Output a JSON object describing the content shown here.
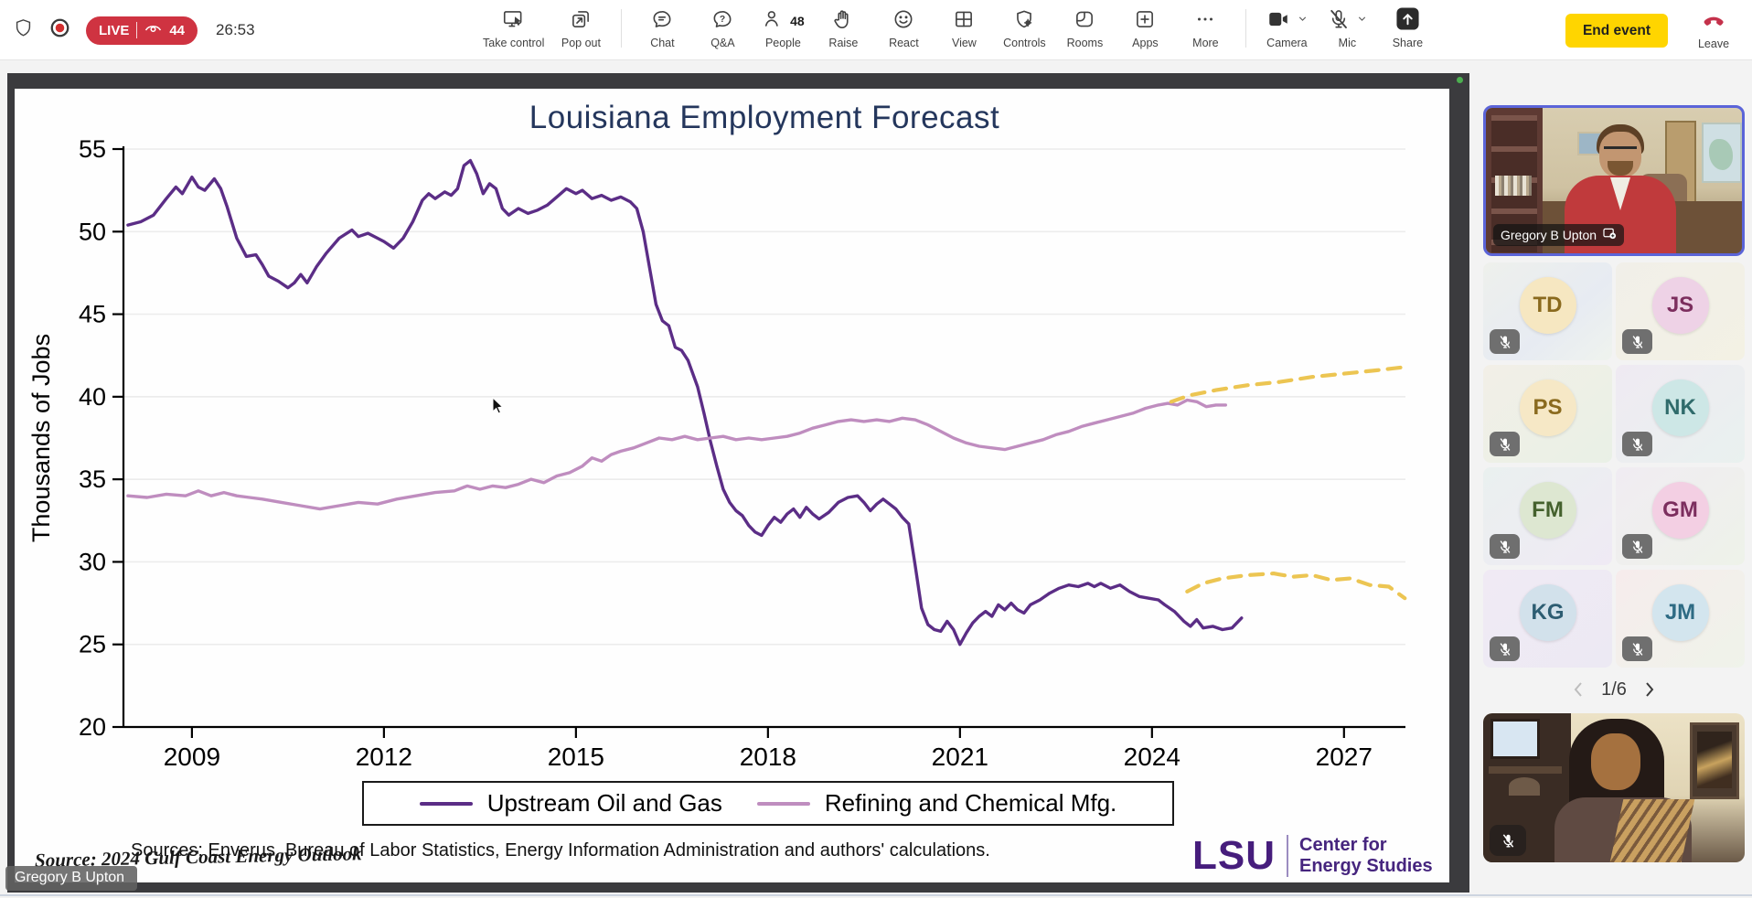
{
  "meeting": {
    "live_label": "LIVE",
    "viewer_count": "44",
    "timer": "26:53",
    "toolbar": [
      {
        "icon": "take-control",
        "label": "Take control"
      },
      {
        "icon": "pop-out",
        "label": "Pop out"
      },
      {
        "divider": true
      },
      {
        "icon": "chat",
        "label": "Chat"
      },
      {
        "icon": "qa",
        "label": "Q&A"
      },
      {
        "icon": "people",
        "label": "People",
        "badge": "48"
      },
      {
        "icon": "raise",
        "label": "Raise"
      },
      {
        "icon": "react",
        "label": "React"
      },
      {
        "icon": "view",
        "label": "View"
      },
      {
        "icon": "controls",
        "label": "Controls"
      },
      {
        "icon": "rooms",
        "label": "Rooms"
      },
      {
        "icon": "apps",
        "label": "Apps"
      },
      {
        "icon": "more",
        "label": "More"
      },
      {
        "divider": true
      },
      {
        "icon": "camera",
        "label": "Camera",
        "chevron": true
      },
      {
        "icon": "mic-off",
        "label": "Mic",
        "chevron": true
      },
      {
        "icon": "share",
        "label": "Share"
      }
    ],
    "end_event_label": "End event",
    "leave_label": "Leave"
  },
  "slide": {
    "title": "Louisiana Employment Forecast",
    "sources_note": "Sources: Enverus, Bureau of Labor Statistics, Energy Information Administration and authors' calculations.",
    "overlay_source": "Source: 2024 Gulf Coast Energy Outlook",
    "logo": {
      "lsu": "LSU",
      "unit_line1": "Center for",
      "unit_line2": "Energy Studies"
    },
    "presenter_caption": "Gregory B Upton"
  },
  "chart_data": {
    "type": "line",
    "title": "Louisiana Employment Forecast",
    "xlabel": "",
    "ylabel": "Thousands of Jobs",
    "ylim": [
      20,
      55
    ],
    "yticks": [
      20,
      25,
      30,
      35,
      40,
      45,
      50,
      55
    ],
    "xticks": [
      2009,
      2012,
      2015,
      2018,
      2021,
      2024,
      2027
    ],
    "xlim": [
      2007.93,
      2027.96
    ],
    "grid": true,
    "legend_position": "bottom",
    "colors": {
      "upstream": "#5b2d86",
      "refining": "#bf8dbf",
      "forecast": "#ecc552"
    },
    "legend": [
      {
        "label": "Upstream Oil and Gas",
        "color": "#5b2d86"
      },
      {
        "label": "Refining and Chemical Mfg.",
        "color": "#bf8dbf"
      }
    ],
    "series": [
      {
        "name": "Upstream Oil and Gas",
        "color": "#5b2d86",
        "style": "solid",
        "points": [
          [
            2008.0,
            50.4
          ],
          [
            2008.2,
            50.6
          ],
          [
            2008.4,
            51.0
          ],
          [
            2008.6,
            52.0
          ],
          [
            2008.75,
            52.7
          ],
          [
            2008.85,
            52.3
          ],
          [
            2009.0,
            53.3
          ],
          [
            2009.1,
            52.7
          ],
          [
            2009.2,
            52.5
          ],
          [
            2009.35,
            53.2
          ],
          [
            2009.45,
            52.6
          ],
          [
            2009.55,
            51.5
          ],
          [
            2009.7,
            49.6
          ],
          [
            2009.85,
            48.5
          ],
          [
            2010.0,
            48.6
          ],
          [
            2010.1,
            48.0
          ],
          [
            2010.2,
            47.3
          ],
          [
            2010.35,
            47.0
          ],
          [
            2010.5,
            46.6
          ],
          [
            2010.6,
            46.9
          ],
          [
            2010.7,
            47.4
          ],
          [
            2010.8,
            46.9
          ],
          [
            2010.95,
            47.9
          ],
          [
            2011.1,
            48.7
          ],
          [
            2011.3,
            49.6
          ],
          [
            2011.5,
            50.1
          ],
          [
            2011.6,
            49.7
          ],
          [
            2011.75,
            49.9
          ],
          [
            2011.9,
            49.6
          ],
          [
            2012.0,
            49.4
          ],
          [
            2012.15,
            49.0
          ],
          [
            2012.3,
            49.6
          ],
          [
            2012.45,
            50.6
          ],
          [
            2012.6,
            51.9
          ],
          [
            2012.7,
            52.3
          ],
          [
            2012.8,
            52.0
          ],
          [
            2012.95,
            52.4
          ],
          [
            2013.05,
            52.2
          ],
          [
            2013.15,
            52.6
          ],
          [
            2013.25,
            54.0
          ],
          [
            2013.35,
            54.3
          ],
          [
            2013.45,
            53.5
          ],
          [
            2013.55,
            52.3
          ],
          [
            2013.65,
            52.9
          ],
          [
            2013.75,
            52.6
          ],
          [
            2013.85,
            51.4
          ],
          [
            2013.95,
            51.0
          ],
          [
            2014.1,
            51.4
          ],
          [
            2014.25,
            51.1
          ],
          [
            2014.4,
            51.3
          ],
          [
            2014.55,
            51.6
          ],
          [
            2014.7,
            52.1
          ],
          [
            2014.85,
            52.6
          ],
          [
            2015.0,
            52.3
          ],
          [
            2015.1,
            52.5
          ],
          [
            2015.25,
            52.0
          ],
          [
            2015.4,
            52.2
          ],
          [
            2015.55,
            51.9
          ],
          [
            2015.7,
            52.1
          ],
          [
            2015.85,
            51.8
          ],
          [
            2015.95,
            51.4
          ],
          [
            2016.05,
            50.0
          ],
          [
            2016.15,
            47.8
          ],
          [
            2016.25,
            45.6
          ],
          [
            2016.35,
            44.6
          ],
          [
            2016.45,
            44.3
          ],
          [
            2016.55,
            43.0
          ],
          [
            2016.65,
            42.8
          ],
          [
            2016.75,
            42.2
          ],
          [
            2016.9,
            40.6
          ],
          [
            2017.0,
            39.0
          ],
          [
            2017.1,
            37.3
          ],
          [
            2017.2,
            35.8
          ],
          [
            2017.3,
            34.4
          ],
          [
            2017.4,
            33.6
          ],
          [
            2017.5,
            33.1
          ],
          [
            2017.6,
            32.8
          ],
          [
            2017.7,
            32.2
          ],
          [
            2017.8,
            31.8
          ],
          [
            2017.9,
            31.6
          ],
          [
            2018.0,
            32.2
          ],
          [
            2018.1,
            32.7
          ],
          [
            2018.2,
            32.4
          ],
          [
            2018.3,
            32.9
          ],
          [
            2018.4,
            33.2
          ],
          [
            2018.5,
            32.7
          ],
          [
            2018.6,
            33.3
          ],
          [
            2018.7,
            32.9
          ],
          [
            2018.8,
            32.6
          ],
          [
            2018.95,
            33.0
          ],
          [
            2019.1,
            33.6
          ],
          [
            2019.25,
            33.9
          ],
          [
            2019.4,
            34.0
          ],
          [
            2019.5,
            33.6
          ],
          [
            2019.6,
            33.1
          ],
          [
            2019.7,
            33.5
          ],
          [
            2019.8,
            33.8
          ],
          [
            2019.9,
            33.5
          ],
          [
            2020.0,
            33.2
          ],
          [
            2020.1,
            32.7
          ],
          [
            2020.2,
            32.3
          ],
          [
            2020.3,
            29.8
          ],
          [
            2020.4,
            27.2
          ],
          [
            2020.5,
            26.2
          ],
          [
            2020.6,
            25.9
          ],
          [
            2020.7,
            25.8
          ],
          [
            2020.8,
            26.4
          ],
          [
            2020.9,
            25.9
          ],
          [
            2021.0,
            25.0
          ],
          [
            2021.1,
            25.7
          ],
          [
            2021.2,
            26.3
          ],
          [
            2021.3,
            26.7
          ],
          [
            2021.4,
            27.0
          ],
          [
            2021.5,
            26.7
          ],
          [
            2021.6,
            27.4
          ],
          [
            2021.7,
            27.1
          ],
          [
            2021.8,
            27.5
          ],
          [
            2021.9,
            27.1
          ],
          [
            2022.0,
            26.9
          ],
          [
            2022.1,
            27.4
          ],
          [
            2022.25,
            27.7
          ],
          [
            2022.4,
            28.1
          ],
          [
            2022.55,
            28.4
          ],
          [
            2022.7,
            28.6
          ],
          [
            2022.85,
            28.5
          ],
          [
            2023.0,
            28.7
          ],
          [
            2023.1,
            28.5
          ],
          [
            2023.2,
            28.7
          ],
          [
            2023.35,
            28.4
          ],
          [
            2023.5,
            28.6
          ],
          [
            2023.65,
            28.2
          ],
          [
            2023.8,
            27.9
          ],
          [
            2023.95,
            27.8
          ],
          [
            2024.1,
            27.7
          ],
          [
            2024.2,
            27.4
          ],
          [
            2024.35,
            27.0
          ],
          [
            2024.5,
            26.4
          ],
          [
            2024.6,
            26.1
          ],
          [
            2024.7,
            26.5
          ],
          [
            2024.8,
            26.0
          ],
          [
            2024.95,
            26.1
          ],
          [
            2025.1,
            25.9
          ],
          [
            2025.25,
            26.0
          ],
          [
            2025.4,
            26.6
          ]
        ]
      },
      {
        "name": "Refining and Chemical Mfg.",
        "color": "#bf8dbf",
        "style": "solid",
        "points": [
          [
            2008.0,
            34.0
          ],
          [
            2008.3,
            33.9
          ],
          [
            2008.6,
            34.1
          ],
          [
            2008.9,
            34.0
          ],
          [
            2009.1,
            34.3
          ],
          [
            2009.3,
            34.0
          ],
          [
            2009.5,
            34.2
          ],
          [
            2009.7,
            34.0
          ],
          [
            2009.9,
            33.9
          ],
          [
            2010.1,
            33.8
          ],
          [
            2010.4,
            33.6
          ],
          [
            2010.7,
            33.4
          ],
          [
            2011.0,
            33.2
          ],
          [
            2011.3,
            33.4
          ],
          [
            2011.6,
            33.6
          ],
          [
            2011.9,
            33.5
          ],
          [
            2012.2,
            33.8
          ],
          [
            2012.5,
            34.0
          ],
          [
            2012.8,
            34.2
          ],
          [
            2013.1,
            34.3
          ],
          [
            2013.3,
            34.6
          ],
          [
            2013.5,
            34.4
          ],
          [
            2013.7,
            34.6
          ],
          [
            2013.9,
            34.5
          ],
          [
            2014.1,
            34.7
          ],
          [
            2014.3,
            35.0
          ],
          [
            2014.5,
            34.8
          ],
          [
            2014.7,
            35.2
          ],
          [
            2014.9,
            35.4
          ],
          [
            2015.1,
            35.8
          ],
          [
            2015.25,
            36.3
          ],
          [
            2015.4,
            36.1
          ],
          [
            2015.55,
            36.5
          ],
          [
            2015.7,
            36.7
          ],
          [
            2015.9,
            36.9
          ],
          [
            2016.1,
            37.2
          ],
          [
            2016.3,
            37.5
          ],
          [
            2016.5,
            37.4
          ],
          [
            2016.7,
            37.6
          ],
          [
            2016.9,
            37.4
          ],
          [
            2017.1,
            37.5
          ],
          [
            2017.3,
            37.6
          ],
          [
            2017.5,
            37.4
          ],
          [
            2017.7,
            37.5
          ],
          [
            2017.9,
            37.4
          ],
          [
            2018.1,
            37.5
          ],
          [
            2018.3,
            37.6
          ],
          [
            2018.5,
            37.8
          ],
          [
            2018.7,
            38.1
          ],
          [
            2018.9,
            38.3
          ],
          [
            2019.1,
            38.5
          ],
          [
            2019.3,
            38.6
          ],
          [
            2019.5,
            38.5
          ],
          [
            2019.7,
            38.6
          ],
          [
            2019.9,
            38.5
          ],
          [
            2020.1,
            38.7
          ],
          [
            2020.3,
            38.6
          ],
          [
            2020.5,
            38.3
          ],
          [
            2020.7,
            37.9
          ],
          [
            2020.9,
            37.5
          ],
          [
            2021.1,
            37.2
          ],
          [
            2021.3,
            37.0
          ],
          [
            2021.5,
            36.9
          ],
          [
            2021.7,
            36.8
          ],
          [
            2021.9,
            37.0
          ],
          [
            2022.1,
            37.2
          ],
          [
            2022.3,
            37.4
          ],
          [
            2022.5,
            37.7
          ],
          [
            2022.7,
            37.9
          ],
          [
            2022.9,
            38.2
          ],
          [
            2023.1,
            38.4
          ],
          [
            2023.3,
            38.6
          ],
          [
            2023.5,
            38.8
          ],
          [
            2023.7,
            39.0
          ],
          [
            2023.9,
            39.3
          ],
          [
            2024.1,
            39.5
          ],
          [
            2024.25,
            39.6
          ],
          [
            2024.4,
            39.5
          ],
          [
            2024.55,
            39.8
          ],
          [
            2024.7,
            39.7
          ],
          [
            2024.85,
            39.4
          ],
          [
            2025.0,
            39.5
          ],
          [
            2025.15,
            39.5
          ]
        ]
      },
      {
        "name": "Refining forecast",
        "color": "#ecc552",
        "style": "dashed",
        "points": [
          [
            2024.3,
            39.7
          ],
          [
            2024.6,
            40.1
          ],
          [
            2025.0,
            40.4
          ],
          [
            2025.5,
            40.7
          ],
          [
            2026.0,
            40.9
          ],
          [
            2026.5,
            41.2
          ],
          [
            2027.0,
            41.4
          ],
          [
            2027.5,
            41.6
          ],
          [
            2027.95,
            41.8
          ]
        ]
      },
      {
        "name": "Upstream forecast",
        "color": "#ecc552",
        "style": "dashed",
        "points": [
          [
            2024.55,
            28.2
          ],
          [
            2024.8,
            28.7
          ],
          [
            2025.1,
            29.0
          ],
          [
            2025.5,
            29.2
          ],
          [
            2025.9,
            29.3
          ],
          [
            2026.2,
            29.1
          ],
          [
            2026.5,
            29.2
          ],
          [
            2026.8,
            28.9
          ],
          [
            2027.1,
            29.0
          ],
          [
            2027.4,
            28.6
          ],
          [
            2027.7,
            28.5
          ],
          [
            2027.95,
            27.8
          ]
        ]
      }
    ]
  },
  "sidebar": {
    "main_speaker": {
      "name": "Gregory B Upton"
    },
    "participants": [
      {
        "initials": "TD",
        "avatar_bg": "#f6e7c1",
        "avatar_fg": "#8a6a1e"
      },
      {
        "initials": "JS",
        "avatar_bg": "#eed2e6",
        "avatar_fg": "#7c2e5e"
      },
      {
        "initials": "PS",
        "avatar_bg": "#f6e8c6",
        "avatar_fg": "#8a6a1e"
      },
      {
        "initials": "NK",
        "avatar_bg": "#cde7e6",
        "avatar_fg": "#2f6b6b"
      },
      {
        "initials": "FM",
        "avatar_bg": "#dde7d1",
        "avatar_fg": "#44612d"
      },
      {
        "initials": "GM",
        "avatar_bg": "#f3cfe3",
        "avatar_fg": "#7c2e5e"
      },
      {
        "initials": "KG",
        "avatar_bg": "#d2e1eb",
        "avatar_fg": "#2d5d72"
      },
      {
        "initials": "JM",
        "avatar_bg": "#d3e5ee",
        "avatar_fg": "#2e6b84"
      }
    ],
    "pagination": "1/6"
  }
}
